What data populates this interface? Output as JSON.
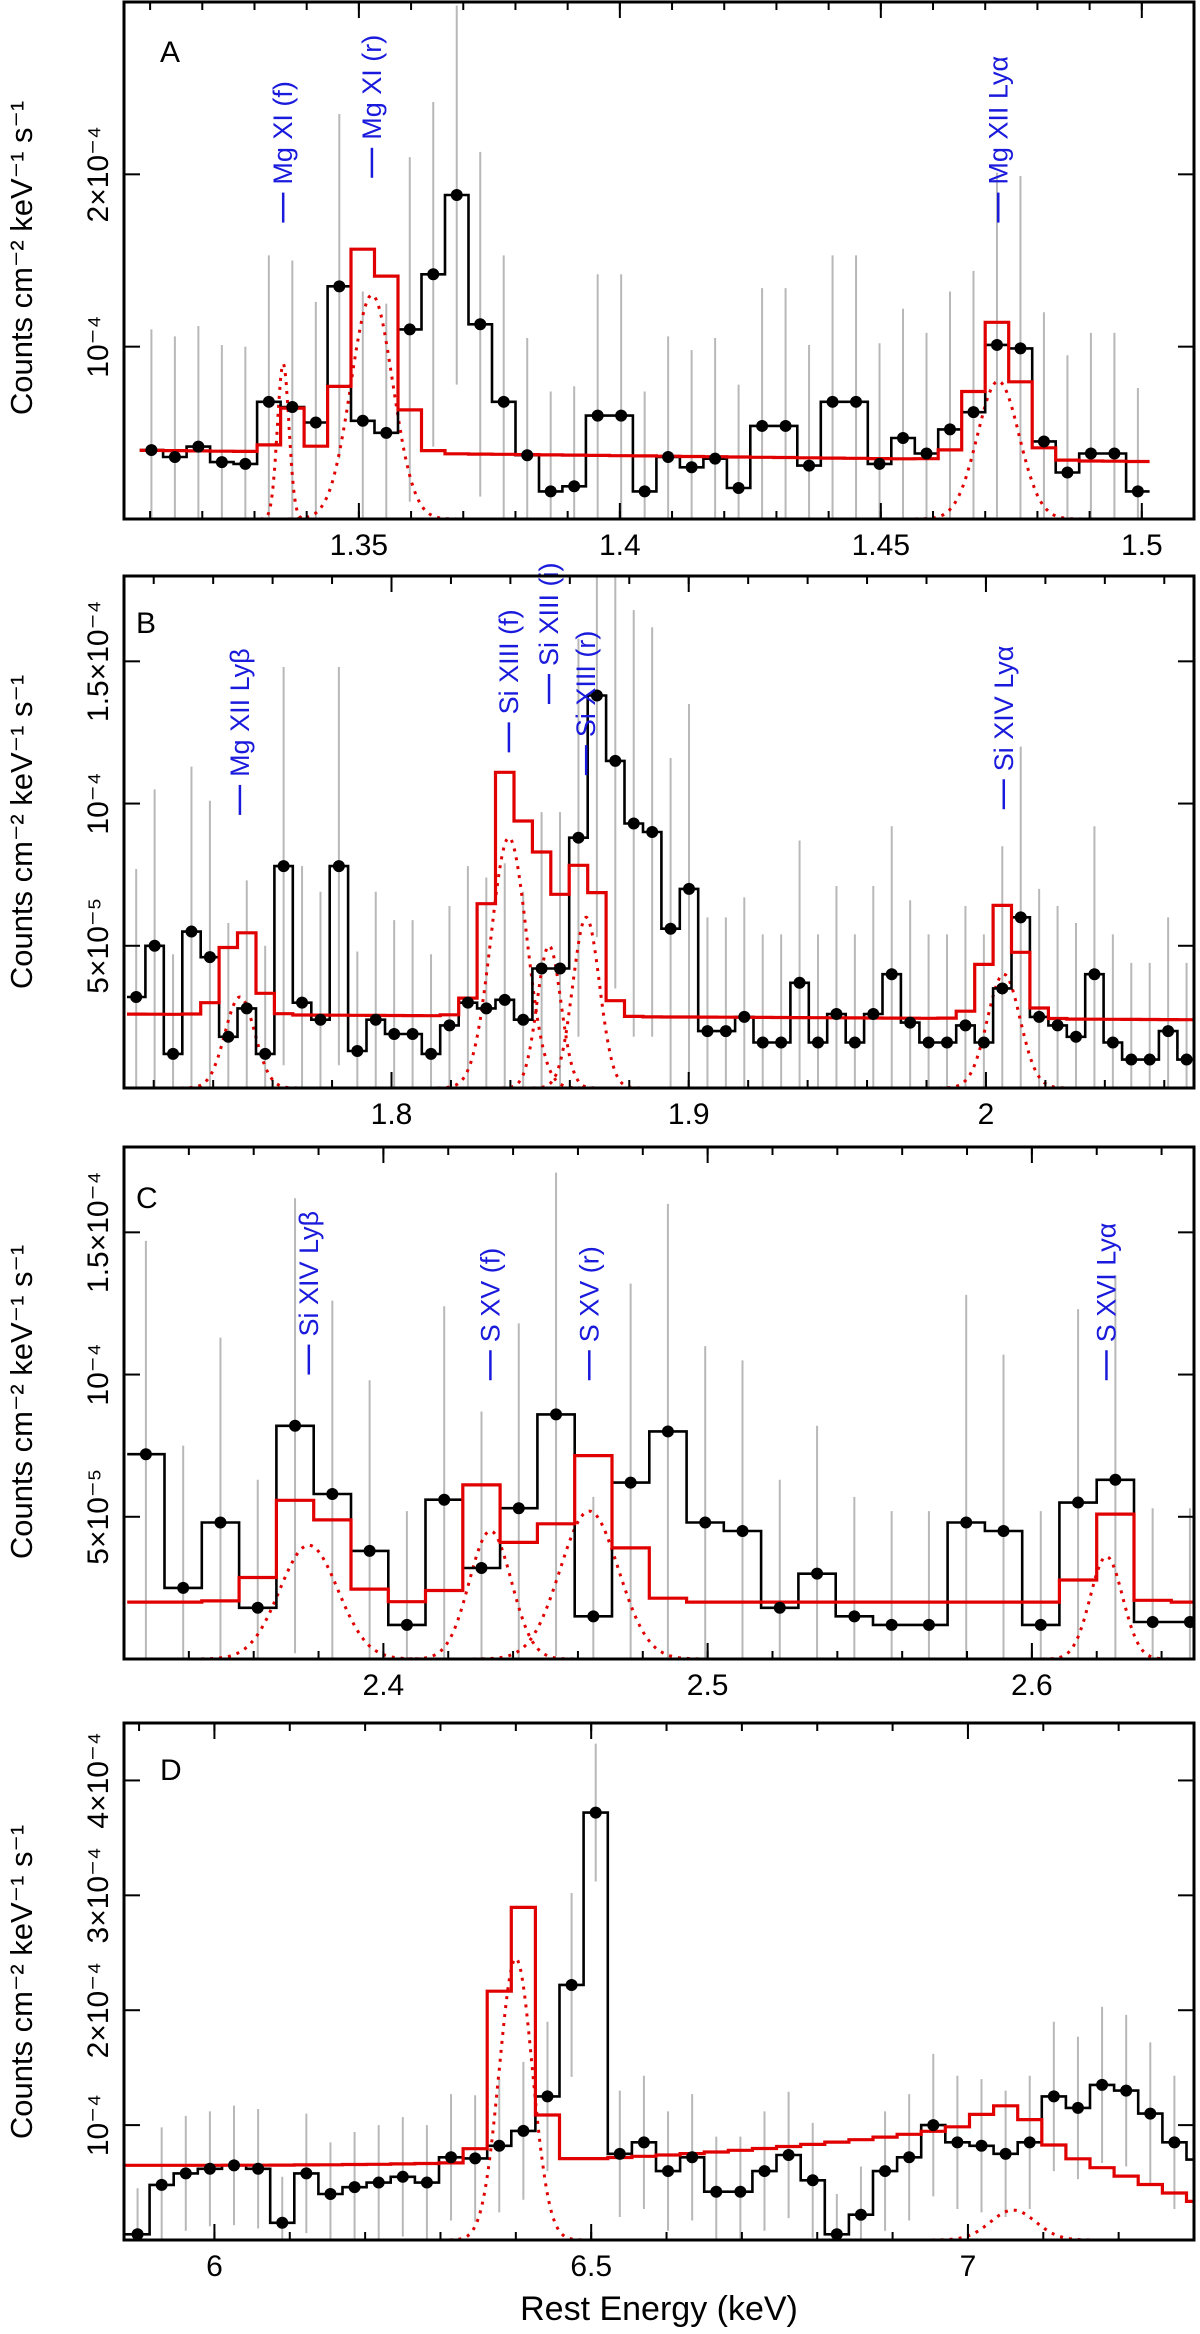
{
  "colors": {
    "data": "#000000",
    "model": "#e10000",
    "label": "#1a1adc",
    "error": "#b8b8b8"
  },
  "figure": {
    "xlabel": "Rest Energy (keV)"
  },
  "chart_data": [
    {
      "type": "line",
      "panel": "A",
      "ylabel": "Counts cm⁻² keV⁻¹ s⁻¹",
      "xlim": [
        1.305,
        1.51
      ],
      "ylim": [
        0,
        0.0003
      ],
      "xticks": [
        1.35,
        1.4,
        1.45,
        1.5
      ],
      "xticklabels": [
        "1.35",
        "1.4",
        "1.45",
        "1.5"
      ],
      "yticks": [
        0.0001,
        0.0002
      ],
      "yticklabels": [
        "10⁻⁴",
        "2×10⁻⁴"
      ],
      "bin_width": 0.0045,
      "x0": 1.308,
      "counts": [
        4e-05,
        3.6e-05,
        4.2e-05,
        3.3e-05,
        3.2e-05,
        6.8e-05,
        6.5e-05,
        5.6e-05,
        0.000135,
        5.7e-05,
        5e-05,
        0.00011,
        0.000142,
        0.000188,
        0.000113,
        6.8e-05,
        3.7e-05,
        1.6e-05,
        1.9e-05,
        6e-05,
        6e-05,
        1.6e-05,
        3.6e-05,
        3e-05,
        3.5e-05,
        1.8e-05,
        5.4e-05,
        5.4e-05,
        3.1e-05,
        6.8e-05,
        6.8e-05,
        3.2e-05,
        4.7e-05,
        3.8e-05,
        5.2e-05,
        6.2e-05,
        0.000101,
        9.9e-05,
        4.5e-05,
        2.7e-05,
        3.8e-05,
        3.8e-05,
        1.6e-05
      ],
      "errors": [
        7e-05,
        7e-05,
        7e-05,
        6.8e-05,
        6.8e-05,
        8.5e-05,
        8.5e-05,
        7e-05,
        0.0001,
        7.5e-05,
        7.5e-05,
        0.0001,
        0.0001,
        0.00011,
        0.0001,
        8.5e-05,
        6.8e-05,
        5.8e-05,
        5.8e-05,
        8.2e-05,
        8.2e-05,
        5.8e-05,
        7e-05,
        6.8e-05,
        7e-05,
        6e-05,
        8e-05,
        8e-05,
        7e-05,
        8.5e-05,
        8.5e-05,
        7e-05,
        7.5e-05,
        7e-05,
        8e-05,
        8.2e-05,
        0.0001,
        0.0001,
        7.5e-05,
        6.8e-05,
        7e-05,
        7e-05,
        6e-05
      ],
      "model": {
        "continuum": [
          4e-05,
          3.3e-05
        ],
        "lines": [
          {
            "center": 1.3355,
            "amp": 9e-05,
            "sigma": 0.0011
          },
          {
            "center": 1.3525,
            "amp": 0.00013,
            "sigma": 0.004
          },
          {
            "center": 1.4725,
            "amp": 8e-05,
            "sigma": 0.004
          }
        ]
      },
      "annotations": [
        {
          "text": "Mg XI (f)",
          "x": 1.3355,
          "y": 0.000172,
          "top": 0.00028
        },
        {
          "text": "Mg XI (r)",
          "x": 1.3525,
          "y": 0.000198,
          "top": 0.0003
        },
        {
          "text": "Mg XII Lyα",
          "x": 1.4725,
          "y": 0.000172,
          "top": 0.00028
        }
      ]
    },
    {
      "type": "line",
      "panel": "B",
      "ylabel": "Counts cm⁻² keV⁻¹ s⁻¹",
      "xlim": [
        1.71,
        2.07
      ],
      "ylim": [
        0,
        0.00018
      ],
      "xticks": [
        1.8,
        1.9,
        2.0
      ],
      "xticklabels": [
        "1.8",
        "1.9",
        "2"
      ],
      "yticks": [
        5e-05,
        0.0001,
        0.00015
      ],
      "yticklabels": [
        "5×10⁻⁵",
        "10⁻⁴",
        "1.5×10⁻⁴"
      ],
      "bin_width": 0.0062,
      "x0": 1.711,
      "counts": [
        3.2e-05,
        5e-05,
        1.2e-05,
        5.5e-05,
        4.6e-05,
        1.8e-05,
        2.8e-05,
        1.2e-05,
        7.8e-05,
        3e-05,
        2.4e-05,
        7.8e-05,
        1.3e-05,
        2.4e-05,
        1.9e-05,
        1.9e-05,
        1.2e-05,
        2.2e-05,
        3e-05,
        2.8e-05,
        3.1e-05,
        2.4e-05,
        4.2e-05,
        4.2e-05,
        8.8e-05,
        0.000138,
        0.000115,
        9.3e-05,
        9e-05,
        5.6e-05,
        7e-05,
        2e-05,
        2e-05,
        2.5e-05,
        1.6e-05,
        1.6e-05,
        3.7e-05,
        1.6e-05,
        2.6e-05,
        1.6e-05,
        2.6e-05,
        4e-05,
        2.3e-05,
        1.6e-05,
        1.6e-05,
        2.2e-05,
        1.6e-05,
        3.5e-05,
        6e-05,
        2.5e-05,
        2.2e-05,
        1.8e-05,
        4e-05,
        1.6e-05,
        1e-05,
        1e-05,
        2e-05,
        1e-05
      ],
      "errors": [
        4.5e-05,
        5.5e-05,
        3.5e-05,
        5.8e-05,
        5.5e-05,
        4e-05,
        4.5e-05,
        3.8e-05,
        7e-05,
        4.8e-05,
        4.5e-05,
        7e-05,
        3.5e-05,
        4.5e-05,
        4e-05,
        4e-05,
        3.5e-05,
        4.2e-05,
        4.8e-05,
        4.6e-05,
        4.8e-05,
        4.5e-05,
        5.5e-05,
        5.5e-05,
        7e-05,
        8.5e-05,
        8e-05,
        7.5e-05,
        7.2e-05,
        6e-05,
        6.5e-05,
        4e-05,
        4e-05,
        4.2e-05,
        3.8e-05,
        3.8e-05,
        5e-05,
        3.8e-05,
        4.5e-05,
        3.8e-05,
        4.5e-05,
        5.2e-05,
        4.3e-05,
        3.8e-05,
        3.8e-05,
        4.2e-05,
        3.8e-05,
        5e-05,
        6e-05,
        4.5e-05,
        4.2e-05,
        4e-05,
        5.2e-05,
        3.8e-05,
        3.4e-05,
        3.4e-05,
        4e-05,
        3.4e-05
      ],
      "model": {
        "continuum": [
          2.6e-05,
          2.4e-05
        ],
        "lines": [
          {
            "center": 1.749,
            "amp": 3.2e-05,
            "sigma": 0.005
          },
          {
            "center": 1.8395,
            "amp": 8.8e-05,
            "sigma": 0.006
          },
          {
            "center": 1.853,
            "amp": 5e-05,
            "sigma": 0.004
          },
          {
            "center": 1.8655,
            "amp": 6e-05,
            "sigma": 0.0045
          },
          {
            "center": 2.006,
            "amp": 4e-05,
            "sigma": 0.0055
          }
        ]
      },
      "annotations": [
        {
          "text": "Mg XII Lyβ",
          "x": 1.749,
          "y": 9.6e-05,
          "top": 0.00015
        },
        {
          "text": "Si XIII (f)",
          "x": 1.8395,
          "y": 0.000118,
          "top": 0.000171
        },
        {
          "text": "Si XIII (i)",
          "x": 1.853,
          "y": 0.000135,
          "top": 0.000185
        },
        {
          "text": "Si XIII (r)",
          "x": 1.8655,
          "y": 0.00011,
          "top": 0.00016
        },
        {
          "text": "Si XIV Lyα",
          "x": 2.006,
          "y": 9.8e-05,
          "top": 0.000159
        }
      ]
    },
    {
      "type": "line",
      "panel": "C",
      "ylabel": "Counts cm⁻² keV⁻¹ s⁻¹",
      "xlim": [
        2.32,
        2.65
      ],
      "ylim": [
        0,
        0.00018
      ],
      "xticks": [
        2.4,
        2.5,
        2.6
      ],
      "xticklabels": [
        "2.4",
        "2.5",
        "2.6"
      ],
      "yticks": [
        5e-05,
        0.0001,
        0.00015
      ],
      "yticklabels": [
        "5×10⁻⁵",
        "10⁻⁴",
        "1.5×10⁻⁴"
      ],
      "bin_width": 0.0115,
      "x0": 2.321,
      "counts": [
        7.2e-05,
        2.5e-05,
        4.8e-05,
        1.8e-05,
        8.2e-05,
        5.8e-05,
        3.8e-05,
        1.2e-05,
        5.6e-05,
        3.2e-05,
        5.3e-05,
        8.6e-05,
        1.5e-05,
        6.2e-05,
        8e-05,
        4.8e-05,
        4.5e-05,
        1.8e-05,
        3e-05,
        1.5e-05,
        1.2e-05,
        1.2e-05,
        4.8e-05,
        4.5e-05,
        1.2e-05,
        5.5e-05,
        6.3e-05,
        1.3e-05,
        1.3e-05
      ],
      "errors": [
        7.5e-05,
        5e-05,
        6.5e-05,
        4.5e-05,
        8e-05,
        6.8e-05,
        6e-05,
        4e-05,
        6.8e-05,
        5.5e-05,
        6.5e-05,
        8.5e-05,
        4.2e-05,
        7e-05,
        8e-05,
        6.2e-05,
        6e-05,
        4.5e-05,
        5.2e-05,
        4.2e-05,
        4e-05,
        4e-05,
        8e-05,
        6.2e-05,
        4e-05,
        6.8e-05,
        7.2e-05,
        4e-05,
        4e-05
      ],
      "model": {
        "continuum": [
          2e-05,
          2e-05
        ],
        "lines": [
          {
            "center": 2.377,
            "amp": 4e-05,
            "sigma": 0.009
          },
          {
            "center": 2.433,
            "amp": 4.5e-05,
            "sigma": 0.0065
          },
          {
            "center": 2.4635,
            "amp": 5.2e-05,
            "sigma": 0.009
          },
          {
            "center": 2.623,
            "amp": 3.6e-05,
            "sigma": 0.005
          }
        ]
      },
      "annotations": [
        {
          "text": "Si XIV Lyβ",
          "x": 2.377,
          "y": 0.0001,
          "top": 0.000155
        },
        {
          "text": "S XV (f)",
          "x": 2.433,
          "y": 9.8e-05,
          "top": 0.000145
        },
        {
          "text": "S XV (r)",
          "x": 2.4635,
          "y": 9.8e-05,
          "top": 0.000145
        },
        {
          "text": "S XVI Lyα",
          "x": 2.623,
          "y": 9.8e-05,
          "top": 0.000155
        }
      ]
    },
    {
      "type": "line",
      "panel": "D",
      "ylabel": "Counts cm⁻² keV⁻¹ s⁻¹",
      "xlim": [
        5.88,
        7.3
      ],
      "ylim": [
        0,
        0.00045
      ],
      "xticks": [
        6.0,
        6.5,
        7.0
      ],
      "xticklabels": [
        "6",
        "6.5",
        "7"
      ],
      "yticks": [
        0.0001,
        0.0002,
        0.0003,
        0.0004
      ],
      "yticklabels": [
        "10⁻⁴",
        "2×10⁻⁴",
        "3×10⁻⁴",
        "4×10⁻⁴"
      ],
      "bin_width": 0.032,
      "x0": 5.882,
      "counts": [
        5e-06,
        4.8e-05,
        5.8e-05,
        6.2e-05,
        6.5e-05,
        6.2e-05,
        1.5e-05,
        5.8e-05,
        4e-05,
        4.6e-05,
        5e-05,
        5.5e-05,
        5e-05,
        7.2e-05,
        7.1e-05,
        8.2e-05,
        9.5e-05,
        0.000125,
        0.000222,
        0.000372,
        7.5e-05,
        8.5e-05,
        6e-05,
        7.2e-05,
        4.2e-05,
        4.2e-05,
        6e-05,
        7.4e-05,
        5.2e-05,
        5e-06,
        2.2e-05,
        6e-05,
        7.2e-05,
        0.0001,
        8.5e-05,
        8.2e-05,
        7.5e-05,
        8.5e-05,
        0.000125,
        0.000115,
        0.000135,
        0.00013,
        0.00011,
        8.5e-05,
        7e-05,
        5.6e-05,
        5e-05,
        4e-05,
        3e-05
      ],
      "errors": [
        4e-05,
        5e-05,
        5e-05,
        5e-05,
        5.2e-05,
        5.2e-05,
        4e-05,
        5.2e-05,
        4.5e-05,
        4.8e-05,
        5e-05,
        5.2e-05,
        5e-05,
        5.5e-05,
        5.5e-05,
        5.8e-05,
        6e-05,
        6.5e-05,
        8e-05,
        6e-05,
        5.5e-05,
        5.8e-05,
        5.2e-05,
        5.5e-05,
        4.8e-05,
        4.8e-05,
        5.2e-05,
        5.5e-05,
        5e-05,
        3.5e-05,
        4.2e-05,
        5.2e-05,
        5.5e-05,
        6.2e-05,
        5.8e-05,
        5.8e-05,
        5.5e-05,
        5.8e-05,
        6.5e-05,
        6.2e-05,
        6.8e-05,
        6.6e-05,
        6.2e-05,
        5.8e-05,
        5.5e-05,
        5.2e-05,
        5e-05,
        4.8e-05,
        4.5e-05
      ],
      "model": {
        "continuum": [
          6.5e-05,
          0.0001,
          3.5e-05
        ],
        "lines": [
          {
            "center": 6.4,
            "amp": 0.000245,
            "sigma": 0.022
          },
          {
            "center": 7.06,
            "amp": 2.6e-05,
            "sigma": 0.03
          }
        ]
      },
      "annotations": []
    }
  ]
}
